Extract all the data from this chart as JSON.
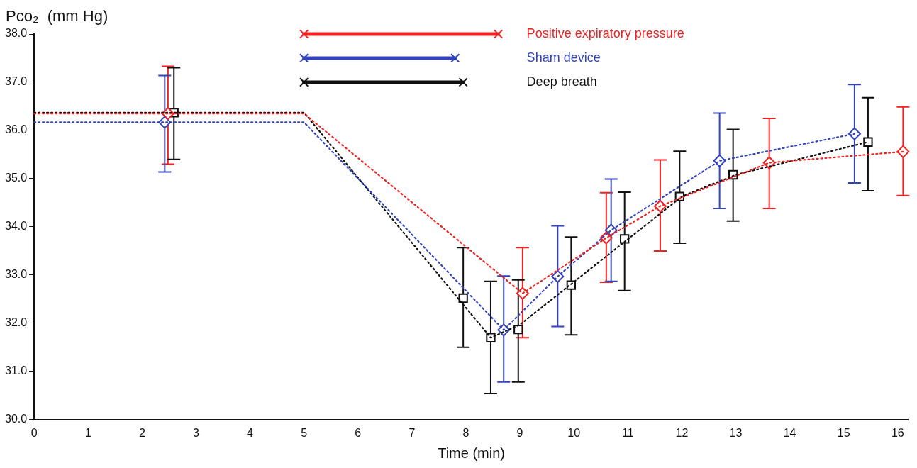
{
  "chart_data": {
    "type": "scatter",
    "xlabel": "Time (min)",
    "ylabel": "Pco₂  (mm Hg)",
    "xlim": [
      0,
      16.2
    ],
    "xticks": [
      0,
      1,
      2,
      3,
      4,
      5,
      6,
      7,
      8,
      9,
      10,
      11,
      12,
      13,
      14,
      15,
      16
    ],
    "ylim": [
      30,
      38
    ],
    "yticks": [
      {
        "value": 30,
        "label": "30.0"
      },
      {
        "value": 31,
        "label": "31.0"
      },
      {
        "value": 32,
        "label": "32.0"
      },
      {
        "value": 33,
        "label": "33.0"
      },
      {
        "value": 34,
        "label": "34.0"
      },
      {
        "value": 35,
        "label": "35.0"
      },
      {
        "value": 36,
        "label": "36.0"
      },
      {
        "value": 37,
        "label": "37.0"
      },
      {
        "value": 38,
        "label": "38.0"
      }
    ],
    "grid": false,
    "series": [
      {
        "type": "line",
        "color": "#ee2222",
        "marker": "none",
        "line_style": "dotted",
        "x": [
          0,
          5,
          9.05,
          10.6,
          11.6,
          13.62,
          16.1
        ],
        "values": [
          36.35,
          36.35,
          32.62,
          33.77,
          34.43,
          35.33,
          35.56
        ]
      },
      {
        "type": "line",
        "color": "#3344bb",
        "marker": "none",
        "line_style": "dotted",
        "x": [
          0,
          5,
          8.7,
          9.7,
          10.69,
          12.7,
          15.2
        ],
        "values": [
          36.17,
          36.17,
          31.86,
          32.97,
          33.93,
          35.37,
          35.93
        ]
      },
      {
        "type": "line",
        "color": "#111111",
        "marker": "none",
        "line_style": "dotted",
        "x": [
          0,
          5,
          8.46,
          9.0,
          12,
          13,
          15.45
        ],
        "values": [
          36.37,
          36.37,
          31.7,
          31.97,
          34.63,
          35.08,
          35.76
        ]
      },
      {
        "type": "scatter",
        "color": "#ee2222",
        "marker": "diamond",
        "x": [
          2.48,
          9.05,
          10.6,
          11.6,
          13.62,
          16.1
        ],
        "values": [
          36.35,
          32.62,
          33.77,
          34.43,
          35.33,
          35.56
        ],
        "errors": [
          [
            35.3,
            37.33
          ],
          [
            31.7,
            33.57
          ],
          [
            32.85,
            34.71
          ],
          [
            33.5,
            35.39
          ],
          [
            34.38,
            36.25
          ],
          [
            34.65,
            36.49
          ]
        ]
      },
      {
        "type": "scatter",
        "color": "#3344bb",
        "marker": "diamond",
        "x": [
          2.42,
          8.7,
          9.7,
          10.69,
          12.7,
          15.2
        ],
        "values": [
          36.17,
          31.86,
          32.97,
          33.93,
          35.37,
          35.93
        ],
        "errors": [
          [
            35.14,
            37.14
          ],
          [
            30.78,
            32.98
          ],
          [
            31.93,
            34.02
          ],
          [
            32.87,
            34.99
          ],
          [
            34.38,
            36.36
          ],
          [
            34.91,
            36.95
          ]
        ]
      },
      {
        "type": "scatter",
        "color": "#111111",
        "marker": "square",
        "x": [
          2.59,
          7.95,
          8.46,
          8.97,
          9.95,
          10.94,
          11.96,
          12.95,
          15.45
        ],
        "values": [
          36.37,
          32.52,
          31.7,
          31.87,
          32.79,
          33.75,
          34.63,
          35.08,
          35.76
        ],
        "errors": [
          [
            35.4,
            37.3
          ],
          [
            31.5,
            33.57
          ],
          [
            30.54,
            32.87
          ],
          [
            30.78,
            32.9
          ],
          [
            31.76,
            33.79
          ],
          [
            32.68,
            34.72
          ],
          [
            33.66,
            35.57
          ],
          [
            34.12,
            36.02
          ],
          [
            34.75,
            36.68
          ]
        ]
      },
      {
        "type": "line",
        "name": "Positive expiratory pressure",
        "color": "#ee2222",
        "marker": "cross",
        "line_style": "solid",
        "x": [
          5,
          8.6
        ],
        "values": [
          38,
          38
        ]
      },
      {
        "type": "line",
        "name": "Sham device",
        "color": "#3344bb",
        "marker": "cross",
        "line_style": "solid",
        "x": [
          5,
          7.8
        ],
        "values": [
          37.5,
          37.5
        ]
      },
      {
        "type": "line",
        "name": "Deep breath",
        "color": "#111111",
        "marker": "cross",
        "line_style": "solid",
        "x": [
          5,
          7.95
        ],
        "values": [
          37,
          37
        ]
      }
    ]
  }
}
